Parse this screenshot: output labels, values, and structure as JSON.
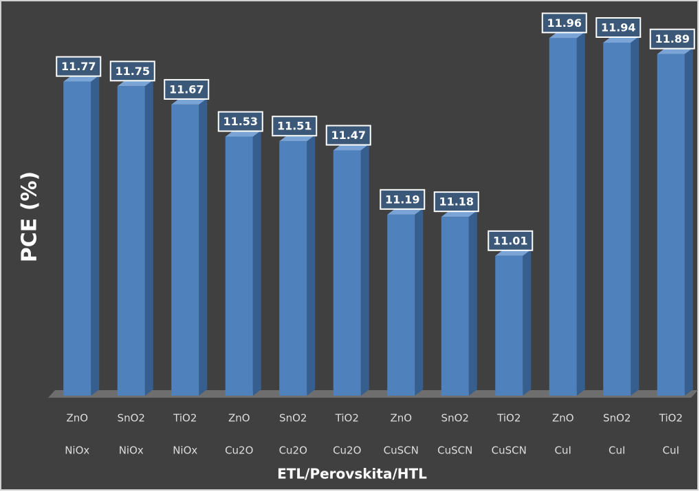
{
  "chart_data": {
    "type": "bar3d",
    "x_label": "ETL/Perovskita/HTL",
    "y_label": "PCE (%)",
    "categories": [
      [
        "ZnO",
        "NiOx"
      ],
      [
        "SnO2",
        "NiOx"
      ],
      [
        "TiO2",
        "NiOx"
      ],
      [
        "ZnO",
        "Cu2O"
      ],
      [
        "SnO2",
        "Cu2O"
      ],
      [
        "TiO2",
        "Cu2O"
      ],
      [
        "ZnO",
        "CuSCN"
      ],
      [
        "SnO2",
        "CuSCN"
      ],
      [
        "TiO2",
        "CuSCN"
      ],
      [
        "ZnO",
        "CuI"
      ],
      [
        "SnO2",
        "CuI"
      ],
      [
        "TiO2",
        "CuI"
      ]
    ],
    "values": [
      11.77,
      11.75,
      11.67,
      11.53,
      11.51,
      11.47,
      11.19,
      11.18,
      11.01,
      11.96,
      11.94,
      11.89
    ],
    "color": "#4f81bd",
    "ylim": [
      10.4,
      12.0
    ]
  }
}
